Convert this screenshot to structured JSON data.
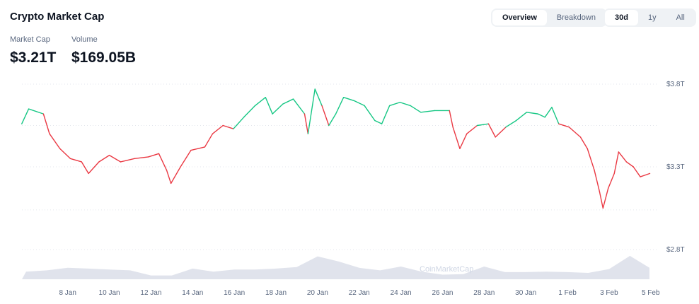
{
  "header": {
    "title": "Crypto Market Cap"
  },
  "stats": [
    {
      "label": "Market Cap",
      "value": "$3.21T"
    },
    {
      "label": "Volume",
      "value": "$169.05B"
    }
  ],
  "view_toggle": {
    "options": [
      "Overview",
      "Breakdown"
    ],
    "selected": "Overview"
  },
  "range_toggle": {
    "options": [
      "30d",
      "1y",
      "All"
    ],
    "selected": "30d"
  },
  "watermark": "CoinMarketCap",
  "colors": {
    "up": "#16c784",
    "down": "#ea3943",
    "volume": "#d5dae6"
  },
  "chart_data": {
    "type": "line",
    "y_unit": "T",
    "ylim": [
      2.8,
      3.8
    ],
    "y_ticks": [
      "$3.8T",
      "$3.3T",
      "$2.8T"
    ],
    "y_tick_values": [
      3.8,
      3.3,
      2.8
    ],
    "x_ticks": [
      "8 Jan",
      "10 Jan",
      "12 Jan",
      "14 Jan",
      "16 Jan",
      "18 Jan",
      "20 Jan",
      "22 Jan",
      "24 Jan",
      "26 Jan",
      "28 Jan",
      "30 Jan",
      "1 Feb",
      "3 Feb",
      "5 Feb"
    ],
    "x_tick_dates": [
      "2025-01-08",
      "2025-01-10",
      "2025-01-12",
      "2025-01-14",
      "2025-01-16",
      "2025-01-18",
      "2025-01-20",
      "2025-01-22",
      "2025-01-24",
      "2025-01-26",
      "2025-01-28",
      "2025-01-30",
      "2025-02-01",
      "2025-02-03",
      "2025-02-05"
    ],
    "grid": true,
    "color_rule": "green above starting value, red below",
    "market_cap": [
      [
        "2025-01-06T07:00",
        3.56
      ],
      [
        "2025-01-06T15:00",
        3.65
      ],
      [
        "2025-01-07T08:00",
        3.62
      ],
      [
        "2025-01-07T15:00",
        3.5
      ],
      [
        "2025-01-08T03:00",
        3.41
      ],
      [
        "2025-01-08T15:00",
        3.35
      ],
      [
        "2025-01-09T04:00",
        3.33
      ],
      [
        "2025-01-09T12:00",
        3.26
      ],
      [
        "2025-01-10T00:00",
        3.33
      ],
      [
        "2025-01-10T12:00",
        3.37
      ],
      [
        "2025-01-11T01:00",
        3.33
      ],
      [
        "2025-01-11T17:00",
        3.35
      ],
      [
        "2025-01-12T09:00",
        3.36
      ],
      [
        "2025-01-12T21:00",
        3.38
      ],
      [
        "2025-01-13T06:00",
        3.28
      ],
      [
        "2025-01-13T11:00",
        3.2
      ],
      [
        "2025-01-13T22:00",
        3.3
      ],
      [
        "2025-01-14T10:00",
        3.4
      ],
      [
        "2025-01-15T02:00",
        3.42
      ],
      [
        "2025-01-15T11:00",
        3.5
      ],
      [
        "2025-01-15T23:00",
        3.55
      ],
      [
        "2025-01-16T11:00",
        3.53
      ],
      [
        "2025-01-16T23:00",
        3.6
      ],
      [
        "2025-01-17T12:00",
        3.67
      ],
      [
        "2025-01-18T00:00",
        3.72
      ],
      [
        "2025-01-18T08:00",
        3.62
      ],
      [
        "2025-01-18T20:00",
        3.68
      ],
      [
        "2025-01-19T08:00",
        3.71
      ],
      [
        "2025-01-19T21:00",
        3.62
      ],
      [
        "2025-01-20T01:00",
        3.5
      ],
      [
        "2025-01-20T09:00",
        3.77
      ],
      [
        "2025-01-20T17:00",
        3.67
      ],
      [
        "2025-01-21T01:00",
        3.55
      ],
      [
        "2025-01-21T09:00",
        3.62
      ],
      [
        "2025-01-21T18:00",
        3.72
      ],
      [
        "2025-01-22T06:00",
        3.7
      ],
      [
        "2025-01-22T18:00",
        3.67
      ],
      [
        "2025-01-23T06:00",
        3.58
      ],
      [
        "2025-01-23T14:00",
        3.56
      ],
      [
        "2025-01-23T23:00",
        3.67
      ],
      [
        "2025-01-24T11:00",
        3.69
      ],
      [
        "2025-01-24T23:00",
        3.67
      ],
      [
        "2025-01-25T11:00",
        3.63
      ],
      [
        "2025-01-26T03:00",
        3.64
      ],
      [
        "2025-01-26T20:00",
        3.64
      ],
      [
        "2025-01-27T00:00",
        3.54
      ],
      [
        "2025-01-27T08:00",
        3.41
      ],
      [
        "2025-01-27T16:00",
        3.5
      ],
      [
        "2025-01-28T04:00",
        3.55
      ],
      [
        "2025-01-28T17:00",
        3.56
      ],
      [
        "2025-01-29T01:00",
        3.48
      ],
      [
        "2025-01-29T13:00",
        3.54
      ],
      [
        "2025-01-30T01:00",
        3.58
      ],
      [
        "2025-01-30T13:00",
        3.63
      ],
      [
        "2025-01-31T02:00",
        3.62
      ],
      [
        "2025-01-31T10:00",
        3.6
      ],
      [
        "2025-01-31T18:00",
        3.66
      ],
      [
        "2025-02-01T02:00",
        3.56
      ],
      [
        "2025-02-01T14:00",
        3.54
      ],
      [
        "2025-02-02T03:00",
        3.48
      ],
      [
        "2025-02-02T11:00",
        3.41
      ],
      [
        "2025-02-02T19:00",
        3.28
      ],
      [
        "2025-02-03T01:00",
        3.15
      ],
      [
        "2025-02-03T05:00",
        3.05
      ],
      [
        "2025-02-03T11:00",
        3.17
      ],
      [
        "2025-02-03T18:00",
        3.26
      ],
      [
        "2025-02-03T23:00",
        3.39
      ],
      [
        "2025-02-04T08:00",
        3.33
      ],
      [
        "2025-02-04T16:00",
        3.3
      ],
      [
        "2025-02-05T00:00",
        3.24
      ],
      [
        "2025-02-05T11:00",
        3.26
      ]
    ],
    "volume_relative": [
      [
        "2025-01-06",
        0.3
      ],
      [
        "2025-01-07",
        0.35
      ],
      [
        "2025-01-08",
        0.45
      ],
      [
        "2025-01-09",
        0.42
      ],
      [
        "2025-01-10",
        0.38
      ],
      [
        "2025-01-11",
        0.35
      ],
      [
        "2025-01-12",
        0.15
      ],
      [
        "2025-01-13",
        0.15
      ],
      [
        "2025-01-14",
        0.42
      ],
      [
        "2025-01-15",
        0.3
      ],
      [
        "2025-01-16",
        0.38
      ],
      [
        "2025-01-17",
        0.38
      ],
      [
        "2025-01-18",
        0.42
      ],
      [
        "2025-01-19",
        0.48
      ],
      [
        "2025-01-20",
        0.9
      ],
      [
        "2025-01-21",
        0.7
      ],
      [
        "2025-01-22",
        0.45
      ],
      [
        "2025-01-23",
        0.35
      ],
      [
        "2025-01-24",
        0.5
      ],
      [
        "2025-01-25",
        0.3
      ],
      [
        "2025-01-26",
        0.18
      ],
      [
        "2025-01-27",
        0.2
      ],
      [
        "2025-01-28",
        0.5
      ],
      [
        "2025-01-29",
        0.28
      ],
      [
        "2025-01-30",
        0.28
      ],
      [
        "2025-01-31",
        0.3
      ],
      [
        "2025-02-01",
        0.28
      ],
      [
        "2025-02-02",
        0.25
      ],
      [
        "2025-02-03",
        0.4
      ],
      [
        "2025-02-04",
        0.92
      ],
      [
        "2025-02-05",
        0.45
      ]
    ]
  }
}
